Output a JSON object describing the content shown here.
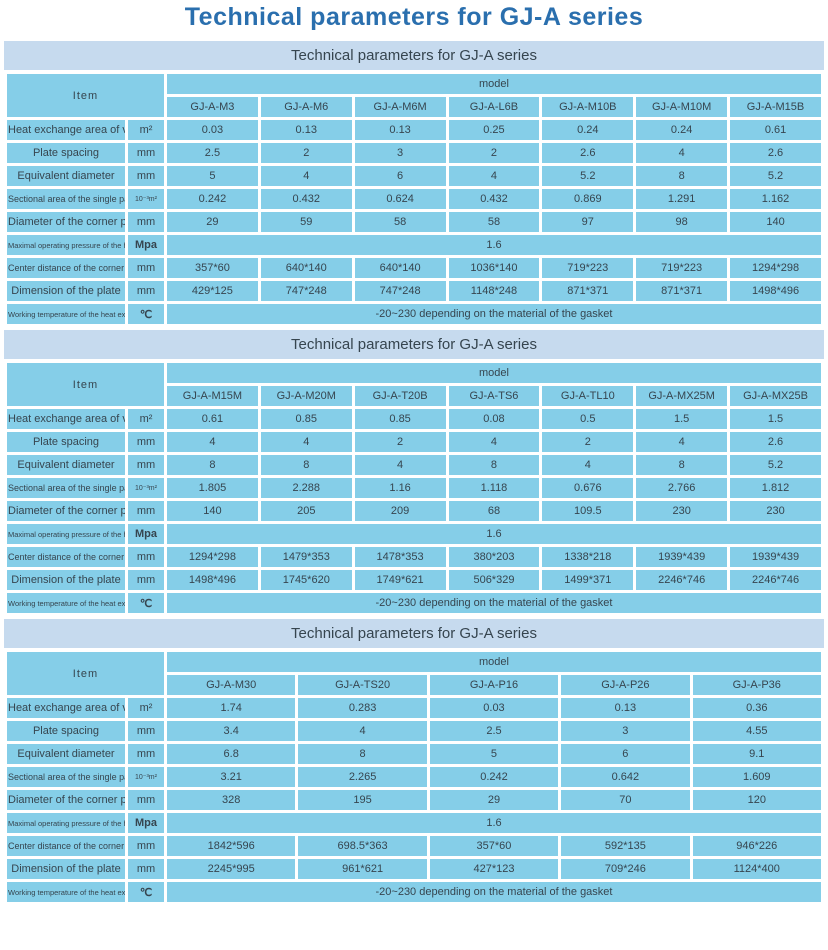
{
  "page_title": "Technical parameters for GJ-A series",
  "colors": {
    "page-bg": "#ffffff",
    "title-text": "#2a6fae",
    "bar-bg": "#c6daee",
    "header-bg": "#cfe9dc",
    "cell-bg": "#85cee8",
    "cell-text": "#36454f"
  },
  "tables": [
    {
      "title": "Technical parameters for GJ-A series",
      "item_header": "Item",
      "model_header": "model",
      "models": [
        "GJ-A-M3",
        "GJ-A-M6",
        "GJ-A-M6M",
        "GJ-A-L6B",
        "GJ-A-M10B",
        "GJ-A-M10M",
        "GJ-A-M15B"
      ],
      "rows": [
        {
          "label": "Heat exchange area of veneer",
          "unit": "m²",
          "span": false,
          "values": [
            "0.03",
            "0.13",
            "0.13",
            "0.25",
            "0.24",
            "0.24",
            "0.61"
          ]
        },
        {
          "label": "Plate spacing",
          "unit": "mm",
          "span": false,
          "values": [
            "2.5",
            "2",
            "3",
            "2",
            "2.6",
            "4",
            "2.6"
          ]
        },
        {
          "label": "Equivalent diameter",
          "unit": "mm",
          "span": false,
          "values": [
            "5",
            "4",
            "6",
            "4",
            "5.2",
            "8",
            "5.2"
          ]
        },
        {
          "label": "Sectional area of the single passage",
          "unit": "10⁻³m²",
          "span": false,
          "values": [
            "0.242",
            "0.432",
            "0.624",
            "0.432",
            "0.869",
            "1.291",
            "1.162"
          ]
        },
        {
          "label": "Diameter of the corner pore",
          "unit": "mm",
          "span": false,
          "values": [
            "29",
            "59",
            "58",
            "58",
            "97",
            "98",
            "140"
          ]
        },
        {
          "label": "Maximal operating pressure of the heat exchanger",
          "unit": "Mpa",
          "span": true,
          "values": [
            "1.6"
          ]
        },
        {
          "label": "Center distance of the corner pore",
          "unit": "mm",
          "span": false,
          "values": [
            "357*60",
            "640*140",
            "640*140",
            "1036*140",
            "719*223",
            "719*223",
            "1294*298"
          ]
        },
        {
          "label": "Dimension of the plate",
          "unit": "mm",
          "span": false,
          "values": [
            "429*125",
            "747*248",
            "747*248",
            "1148*248",
            "871*371",
            "871*371",
            "1498*496"
          ]
        },
        {
          "label": "Working temperature of the heat exchanger",
          "unit": "℃",
          "span": true,
          "values": [
            "-20~230 depending on the material of the gasket"
          ]
        }
      ]
    },
    {
      "title": "Technical parameters for GJ-A series",
      "item_header": "Item",
      "model_header": "model",
      "models": [
        "GJ-A-M15M",
        "GJ-A-M20M",
        "GJ-A-T20B",
        "GJ-A-TS6",
        "GJ-A-TL10",
        "GJ-A-MX25M",
        "GJ-A-MX25B"
      ],
      "rows": [
        {
          "label": "Heat exchange area of veneer",
          "unit": "m²",
          "span": false,
          "values": [
            "0.61",
            "0.85",
            "0.85",
            "0.08",
            "0.5",
            "1.5",
            "1.5"
          ]
        },
        {
          "label": "Plate spacing",
          "unit": "mm",
          "span": false,
          "values": [
            "4",
            "4",
            "2",
            "4",
            "2",
            "4",
            "2.6"
          ]
        },
        {
          "label": "Equivalent diameter",
          "unit": "mm",
          "span": false,
          "values": [
            "8",
            "8",
            "4",
            "8",
            "4",
            "8",
            "5.2"
          ]
        },
        {
          "label": "Sectional area of the single passage",
          "unit": "10⁻³m²",
          "span": false,
          "values": [
            "1.805",
            "2.288",
            "1.16",
            "1.118",
            "0.676",
            "2.766",
            "1.812"
          ]
        },
        {
          "label": "Diameter of the corner pore",
          "unit": "mm",
          "span": false,
          "values": [
            "140",
            "205",
            "209",
            "68",
            "109.5",
            "230",
            "230"
          ]
        },
        {
          "label": "Maximal operating pressure of the heat exchanger",
          "unit": "Mpa",
          "span": true,
          "values": [
            "1.6"
          ]
        },
        {
          "label": "Center distance of the corner pore",
          "unit": "mm",
          "span": false,
          "values": [
            "1294*298",
            "1479*353",
            "1478*353",
            "380*203",
            "1338*218",
            "1939*439",
            "1939*439"
          ]
        },
        {
          "label": "Dimension of the plate",
          "unit": "mm",
          "span": false,
          "values": [
            "1498*496",
            "1745*620",
            "1749*621",
            "506*329",
            "1499*371",
            "2246*746",
            "2246*746"
          ]
        },
        {
          "label": "Working temperature of the heat exchanger",
          "unit": "℃",
          "span": true,
          "values": [
            "-20~230 depending on the material of the gasket"
          ]
        }
      ]
    },
    {
      "title": "Technical parameters for GJ-A series",
      "item_header": "Item",
      "model_header": "model",
      "models": [
        "GJ-A-M30",
        "GJ-A-TS20",
        "GJ-A-P16",
        "GJ-A-P26",
        "GJ-A-P36"
      ],
      "rows": [
        {
          "label": "Heat exchange area of veneer",
          "unit": "m²",
          "span": false,
          "values": [
            "1.74",
            "0.283",
            "0.03",
            "0.13",
            "0.36"
          ]
        },
        {
          "label": "Plate spacing",
          "unit": "mm",
          "span": false,
          "values": [
            "3.4",
            "4",
            "2.5",
            "3",
            "4.55"
          ]
        },
        {
          "label": "Equivalent diameter",
          "unit": "mm",
          "span": false,
          "values": [
            "6.8",
            "8",
            "5",
            "6",
            "9.1"
          ]
        },
        {
          "label": "Sectional area of the single passage",
          "unit": "10⁻³m²",
          "span": false,
          "values": [
            "3.21",
            "2.265",
            "0.242",
            "0.642",
            "1.609"
          ]
        },
        {
          "label": "Diameter of the corner pore",
          "unit": "mm",
          "span": false,
          "values": [
            "328",
            "195",
            "29",
            "70",
            "120"
          ]
        },
        {
          "label": "Maximal operating pressure of the heat exchanger",
          "unit": "Mpa",
          "span": true,
          "values": [
            "1.6"
          ]
        },
        {
          "label": "Center distance of the corner pore",
          "unit": "mm",
          "span": false,
          "values": [
            "1842*596",
            "698.5*363",
            "357*60",
            "592*135",
            "946*226"
          ]
        },
        {
          "label": "Dimension of the plate",
          "unit": "mm",
          "span": false,
          "values": [
            "2245*995",
            "961*621",
            "427*123",
            "709*246",
            "1124*400"
          ]
        },
        {
          "label": "Working temperature of the heat exchanger",
          "unit": "℃",
          "span": true,
          "values": [
            "-20~230 depending on the material of the gasket"
          ]
        }
      ]
    }
  ]
}
